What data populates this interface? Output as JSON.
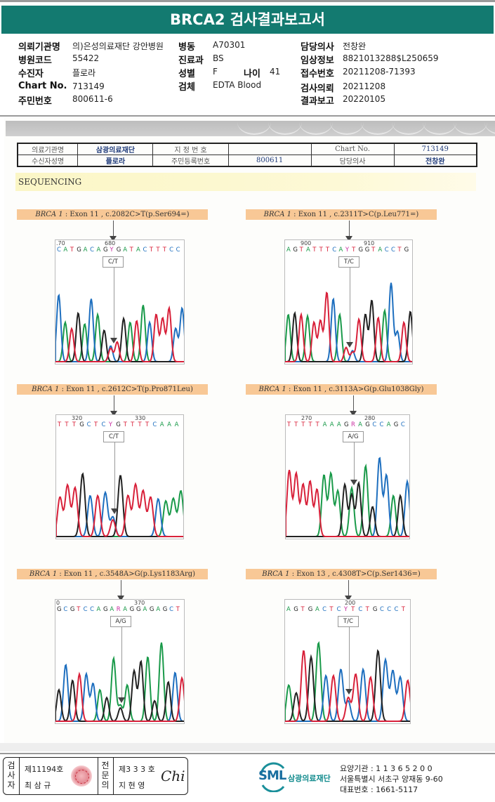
{
  "report": {
    "title": "BRCA2 검사결과보고서"
  },
  "patient_info": {
    "col1": [
      {
        "label": "의뢰기관명",
        "value": "의)은성의료재단 강안병원"
      },
      {
        "label": "병원코드",
        "value": "55422"
      },
      {
        "label": "수진자",
        "value": "플로라"
      },
      {
        "label": "Chart No.",
        "value": "713149"
      },
      {
        "label": "주민번호",
        "value": "800611-6"
      }
    ],
    "col2": [
      {
        "label": "병동",
        "value": "A70301"
      },
      {
        "label": "진료과",
        "value": "BS"
      },
      {
        "label": "성별",
        "value": "F"
      },
      {
        "label": "검체",
        "value": "EDTA Blood"
      }
    ],
    "age": {
      "label": "나이",
      "value": "41"
    },
    "col3": [
      {
        "label": "담당의사",
        "value": "전창완"
      },
      {
        "label": "임상정보",
        "value": "8821013288$L250659"
      },
      {
        "label": "접수번호",
        "value": "20211208-71393"
      },
      {
        "label": "검사의뢰",
        "value": "20211208"
      },
      {
        "label": "결과보고",
        "value": "20220105"
      }
    ]
  },
  "recipient_table": {
    "row1": [
      "의료기관명",
      "삼광의료재단",
      "지 정 번 호",
      "",
      "Chart No.",
      "713149"
    ],
    "row2": [
      "수신자성명",
      "플로라",
      "주민등록번호",
      "800611",
      "담당의사",
      "전창완"
    ]
  },
  "section": {
    "title": "SEQUENCING"
  },
  "chart_data": [
    {
      "type": "chromatogram",
      "gene": "BRCA 1",
      "caption": " : Exon 11 , c.2082C>T(p.Ser694=)",
      "positions": [
        ".70",
        "680"
      ],
      "sequence": "CATGACAGYGATACTTTCC",
      "call": "C/T",
      "peaks": [
        {
          "base": "C",
          "h": 0.85
        },
        {
          "base": "A",
          "h": 0.5
        },
        {
          "base": "T",
          "h": 0.42
        },
        {
          "base": "G",
          "h": 0.62
        },
        {
          "base": "A",
          "h": 0.48
        },
        {
          "base": "C",
          "h": 0.8
        },
        {
          "base": "A",
          "h": 0.6
        },
        {
          "base": "G",
          "h": 0.4
        },
        {
          "base": "C",
          "h": 0.2
        },
        {
          "base": "T",
          "h": 0.25
        },
        {
          "base": "G",
          "h": 0.55
        },
        {
          "base": "A",
          "h": 0.5
        },
        {
          "base": "T",
          "h": 0.52
        },
        {
          "base": "A",
          "h": 0.72
        },
        {
          "base": "C",
          "h": 0.5
        },
        {
          "base": "T",
          "h": 0.6
        },
        {
          "base": "T",
          "h": 0.55
        },
        {
          "base": "T",
          "h": 0.68
        },
        {
          "base": "C",
          "h": 0.42
        },
        {
          "base": "C",
          "h": 0.68
        }
      ]
    },
    {
      "type": "chromatogram",
      "gene": "BRCA 1",
      "caption": " : Exon 11 , c.2311T>C(p.Leu771=)",
      "positions": [
        "900",
        "910"
      ],
      "sequence": "AGTATTTCAYTGGTACCTG",
      "call": "T/C",
      "peaks": [
        {
          "base": "A",
          "h": 0.6
        },
        {
          "base": "G",
          "h": 0.62
        },
        {
          "base": "T",
          "h": 0.6
        },
        {
          "base": "A",
          "h": 0.58
        },
        {
          "base": "T",
          "h": 0.5
        },
        {
          "base": "T",
          "h": 0.52
        },
        {
          "base": "T",
          "h": 0.88
        },
        {
          "base": "C",
          "h": 0.8
        },
        {
          "base": "A",
          "h": 0.6
        },
        {
          "base": "T",
          "h": 0.18
        },
        {
          "base": "C",
          "h": 0.14
        },
        {
          "base": "T",
          "h": 0.54
        },
        {
          "base": "G",
          "h": 0.6
        },
        {
          "base": "G",
          "h": 0.78
        },
        {
          "base": "T",
          "h": 0.56
        },
        {
          "base": "A",
          "h": 0.65
        },
        {
          "base": "C",
          "h": 1.0
        },
        {
          "base": "C",
          "h": 0.38
        },
        {
          "base": "T",
          "h": 0.5
        },
        {
          "base": "G",
          "h": 0.64
        }
      ]
    },
    {
      "type": "chromatogram",
      "gene": "BRCA 1",
      "caption": " : Exon 11 , c.2612C>T(p.Pro871Leu)",
      "positions": [
        "320",
        "330"
      ],
      "sequence": "TTTGCTCYGTTTTCAAA",
      "call": "C/T",
      "peaks": [
        {
          "base": "T",
          "h": 0.5
        },
        {
          "base": "T",
          "h": 0.65
        },
        {
          "base": "T",
          "h": 0.62
        },
        {
          "base": "G",
          "h": 0.8
        },
        {
          "base": "C",
          "h": 0.52
        },
        {
          "base": "T",
          "h": 0.52
        },
        {
          "base": "C",
          "h": 0.56
        },
        {
          "base": "C",
          "h": 0.25
        },
        {
          "base": "G",
          "h": 0.78
        },
        {
          "base": "T",
          "h": 0.52
        },
        {
          "base": "T",
          "h": 0.66
        },
        {
          "base": "T",
          "h": 0.58
        },
        {
          "base": "T",
          "h": 0.5
        },
        {
          "base": "C",
          "h": 0.48
        },
        {
          "base": "A",
          "h": 0.45
        },
        {
          "base": "A",
          "h": 0.48
        },
        {
          "base": "A",
          "h": 0.58
        }
      ]
    },
    {
      "type": "chromatogram",
      "gene": "BRCA 1",
      "caption": " : Exon 11 , c.3113A>G(p.Glu1038Gly)",
      "positions": [
        "270",
        "280"
      ],
      "sequence": "TTTTTAAAGRAGCCAGC",
      "call": "A/G",
      "peaks": [
        {
          "base": "T",
          "h": 0.84
        },
        {
          "base": "T",
          "h": 0.8
        },
        {
          "base": "T",
          "h": 0.66
        },
        {
          "base": "T",
          "h": 0.7
        },
        {
          "base": "T",
          "h": 0.6
        },
        {
          "base": "A",
          "h": 0.78
        },
        {
          "base": "A",
          "h": 0.8
        },
        {
          "base": "A",
          "h": 0.58
        },
        {
          "base": "G",
          "h": 0.66
        },
        {
          "base": "A",
          "h": 0.62
        },
        {
          "base": "G",
          "h": 0.68
        },
        {
          "base": "A",
          "h": 0.9
        },
        {
          "base": "G",
          "h": 0.38
        },
        {
          "base": "C",
          "h": 1.0
        },
        {
          "base": "C",
          "h": 0.78
        },
        {
          "base": "A",
          "h": 0.52
        },
        {
          "base": "G",
          "h": 0.52
        },
        {
          "base": "C",
          "h": 0.7
        }
      ]
    },
    {
      "type": "chromatogram",
      "gene": "BRCA 1",
      "caption": " : Exon 11 , c.3548A>G(p.Lys1183Arg)",
      "positions": [
        "0",
        "370"
      ],
      "sequence": "GCGTCCAGARAGGAGAGCT",
      "call": "A/G",
      "peaks": [
        {
          "base": "G",
          "h": 0.4
        },
        {
          "base": "C",
          "h": 0.72
        },
        {
          "base": "G",
          "h": 0.52
        },
        {
          "base": "T",
          "h": 0.6
        },
        {
          "base": "C",
          "h": 0.6
        },
        {
          "base": "C",
          "h": 0.48
        },
        {
          "base": "A",
          "h": 0.4
        },
        {
          "base": "G",
          "h": 0.3
        },
        {
          "base": "A",
          "h": 0.8
        },
        {
          "base": "A",
          "h": 0.2
        },
        {
          "base": "A",
          "h": 0.46
        },
        {
          "base": "G",
          "h": 0.64
        },
        {
          "base": "G",
          "h": 0.76
        },
        {
          "base": "A",
          "h": 0.82
        },
        {
          "base": "G",
          "h": 0.26
        },
        {
          "base": "A",
          "h": 1.0
        },
        {
          "base": "G",
          "h": 0.5
        },
        {
          "base": "C",
          "h": 0.62
        },
        {
          "base": "T",
          "h": 0.55
        }
      ]
    },
    {
      "type": "chromatogram",
      "gene": "BRCA 1",
      "caption": " : Exon 13 , c.4308T>C(p.Ser1436=)",
      "positions": [
        "200"
      ],
      "sequence": "AGTGACTCYTCTGCCCT",
      "call": "T/C",
      "peaks": [
        {
          "base": "A",
          "h": 0.46
        },
        {
          "base": "G",
          "h": 0.36
        },
        {
          "base": "T",
          "h": 0.9
        },
        {
          "base": "G",
          "h": 0.82
        },
        {
          "base": "A",
          "h": 1.0
        },
        {
          "base": "C",
          "h": 0.58
        },
        {
          "base": "T",
          "h": 0.58
        },
        {
          "base": "C",
          "h": 0.66
        },
        {
          "base": "T",
          "h": 0.3
        },
        {
          "base": "T",
          "h": 0.6
        },
        {
          "base": "C",
          "h": 0.66
        },
        {
          "base": "T",
          "h": 0.56
        },
        {
          "base": "G",
          "h": 0.9
        },
        {
          "base": "C",
          "h": 0.78
        },
        {
          "base": "C",
          "h": 0.64
        },
        {
          "base": "C",
          "h": 0.56
        },
        {
          "base": "T",
          "h": 0.52
        }
      ]
    }
  ],
  "base_colors": {
    "A": "#1a9a4a",
    "C": "#1e6fbf",
    "G": "#222222",
    "T": "#d8213a",
    "Y": "#c82fa0",
    "R": "#c82fa0"
  },
  "footer": {
    "examiner_label": "검사자",
    "examiner_no": "제11194호",
    "examiner_name": "최 삼 규",
    "specialist_label": "전문의",
    "specialist_no": "제3 3 3 호",
    "specialist_name": "지 현 영",
    "signature": "Chi",
    "logo_text": "SML",
    "org_name": "삼광의료재단",
    "address_lines": [
      "요양기관 : 1 1 3 6 5 2 0 0",
      "서울특별시 서초구 양재동 9-60",
      "대표번호 : 1661-5117"
    ]
  }
}
